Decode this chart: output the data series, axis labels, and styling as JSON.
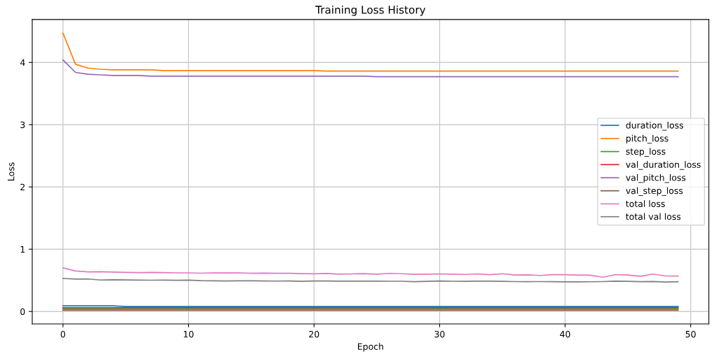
{
  "chart_data": {
    "type": "line",
    "title": "Training Loss History",
    "xlabel": "Epoch",
    "ylabel": "Loss",
    "x": [
      0,
      1,
      2,
      3,
      4,
      5,
      6,
      7,
      8,
      9,
      10,
      11,
      12,
      13,
      14,
      15,
      16,
      17,
      18,
      19,
      20,
      21,
      22,
      23,
      24,
      25,
      26,
      27,
      28,
      29,
      30,
      31,
      32,
      33,
      34,
      35,
      36,
      37,
      38,
      39,
      40,
      41,
      42,
      43,
      44,
      45,
      46,
      47,
      48,
      49
    ],
    "series": [
      {
        "name": "duration_loss",
        "color": "#1f77b4",
        "values": [
          0.09,
          0.09,
          0.09,
          0.09,
          0.09,
          0.08,
          0.08,
          0.08,
          0.08,
          0.08,
          0.08,
          0.08,
          0.08,
          0.08,
          0.08,
          0.08,
          0.08,
          0.08,
          0.08,
          0.08,
          0.08,
          0.08,
          0.08,
          0.08,
          0.08,
          0.08,
          0.08,
          0.08,
          0.08,
          0.08,
          0.08,
          0.08,
          0.08,
          0.08,
          0.08,
          0.08,
          0.08,
          0.08,
          0.08,
          0.08,
          0.08,
          0.08,
          0.08,
          0.08,
          0.08,
          0.08,
          0.08,
          0.08,
          0.08,
          0.08
        ]
      },
      {
        "name": "pitch_loss",
        "color": "#ff7f0e",
        "values": [
          4.47,
          3.97,
          3.91,
          3.89,
          3.88,
          3.88,
          3.88,
          3.88,
          3.87,
          3.87,
          3.87,
          3.87,
          3.87,
          3.87,
          3.87,
          3.87,
          3.87,
          3.87,
          3.87,
          3.87,
          3.87,
          3.86,
          3.86,
          3.86,
          3.86,
          3.86,
          3.86,
          3.86,
          3.86,
          3.86,
          3.86,
          3.86,
          3.86,
          3.86,
          3.86,
          3.86,
          3.86,
          3.86,
          3.86,
          3.86,
          3.86,
          3.86,
          3.86,
          3.86,
          3.86,
          3.86,
          3.86,
          3.86,
          3.86,
          3.86
        ]
      },
      {
        "name": "step_loss",
        "color": "#2ca02c",
        "values": [
          0.04,
          0.04,
          0.04,
          0.04,
          0.04,
          0.04,
          0.04,
          0.04,
          0.04,
          0.04,
          0.04,
          0.04,
          0.04,
          0.04,
          0.04,
          0.04,
          0.04,
          0.04,
          0.04,
          0.04,
          0.04,
          0.04,
          0.04,
          0.04,
          0.04,
          0.04,
          0.04,
          0.04,
          0.04,
          0.04,
          0.04,
          0.04,
          0.04,
          0.04,
          0.04,
          0.04,
          0.04,
          0.04,
          0.04,
          0.04,
          0.04,
          0.04,
          0.04,
          0.04,
          0.04,
          0.04,
          0.04,
          0.04,
          0.04,
          0.04
        ]
      },
      {
        "name": "val_duration_loss",
        "color": "#d62728",
        "values": [
          0.06,
          0.06,
          0.06,
          0.06,
          0.06,
          0.06,
          0.06,
          0.06,
          0.06,
          0.06,
          0.06,
          0.06,
          0.06,
          0.06,
          0.06,
          0.06,
          0.06,
          0.06,
          0.06,
          0.06,
          0.06,
          0.06,
          0.06,
          0.06,
          0.06,
          0.06,
          0.06,
          0.06,
          0.06,
          0.06,
          0.06,
          0.06,
          0.06,
          0.06,
          0.06,
          0.06,
          0.06,
          0.06,
          0.06,
          0.06,
          0.06,
          0.06,
          0.06,
          0.06,
          0.06,
          0.06,
          0.06,
          0.06,
          0.06,
          0.06
        ]
      },
      {
        "name": "val_pitch_loss",
        "color": "#9467bd",
        "values": [
          4.04,
          3.84,
          3.81,
          3.8,
          3.79,
          3.79,
          3.79,
          3.78,
          3.78,
          3.78,
          3.78,
          3.78,
          3.78,
          3.78,
          3.78,
          3.78,
          3.78,
          3.78,
          3.78,
          3.78,
          3.78,
          3.78,
          3.78,
          3.78,
          3.78,
          3.77,
          3.77,
          3.77,
          3.77,
          3.77,
          3.77,
          3.77,
          3.77,
          3.77,
          3.77,
          3.77,
          3.77,
          3.77,
          3.77,
          3.77,
          3.77,
          3.77,
          3.77,
          3.77,
          3.77,
          3.77,
          3.77,
          3.77,
          3.77,
          3.77
        ]
      },
      {
        "name": "val_step_loss",
        "color": "#8c564b",
        "values": [
          0.02,
          0.02,
          0.02,
          0.02,
          0.02,
          0.02,
          0.02,
          0.02,
          0.02,
          0.02,
          0.02,
          0.02,
          0.02,
          0.02,
          0.02,
          0.02,
          0.02,
          0.02,
          0.02,
          0.02,
          0.02,
          0.02,
          0.02,
          0.02,
          0.02,
          0.02,
          0.02,
          0.02,
          0.02,
          0.02,
          0.02,
          0.02,
          0.02,
          0.02,
          0.02,
          0.02,
          0.02,
          0.02,
          0.02,
          0.02,
          0.02,
          0.02,
          0.02,
          0.02,
          0.02,
          0.02,
          0.02,
          0.02,
          0.02,
          0.02
        ]
      },
      {
        "name": "total loss",
        "color": "#e377c2",
        "values": [
          0.7,
          0.65,
          0.635,
          0.638,
          0.632,
          0.628,
          0.625,
          0.628,
          0.624,
          0.62,
          0.62,
          0.615,
          0.62,
          0.618,
          0.62,
          0.613,
          0.616,
          0.614,
          0.614,
          0.608,
          0.605,
          0.61,
          0.6,
          0.603,
          0.607,
          0.6,
          0.612,
          0.606,
          0.596,
          0.6,
          0.603,
          0.6,
          0.595,
          0.603,
          0.59,
          0.606,
          0.585,
          0.588,
          0.578,
          0.59,
          0.59,
          0.586,
          0.583,
          0.55,
          0.592,
          0.585,
          0.565,
          0.6,
          0.57,
          0.568
        ]
      },
      {
        "name": "total val loss",
        "color": "#7f7f7f",
        "values": [
          0.53,
          0.52,
          0.522,
          0.505,
          0.51,
          0.506,
          0.503,
          0.502,
          0.504,
          0.5,
          0.503,
          0.495,
          0.493,
          0.49,
          0.492,
          0.493,
          0.49,
          0.488,
          0.49,
          0.484,
          0.49,
          0.489,
          0.487,
          0.487,
          0.486,
          0.486,
          0.485,
          0.485,
          0.479,
          0.484,
          0.49,
          0.485,
          0.484,
          0.487,
          0.487,
          0.484,
          0.48,
          0.479,
          0.48,
          0.478,
          0.476,
          0.476,
          0.477,
          0.48,
          0.487,
          0.484,
          0.479,
          0.482,
          0.472,
          0.478
        ]
      }
    ],
    "xlim": [
      -2.45,
      51.45
    ],
    "ylim": [
      -0.2,
      4.69
    ],
    "xticks": [
      0,
      10,
      20,
      30,
      40,
      50
    ],
    "yticks": [
      0,
      1,
      2,
      3,
      4
    ],
    "grid": true,
    "legend": "center right",
    "marker": "none",
    "line_style": "solid"
  }
}
